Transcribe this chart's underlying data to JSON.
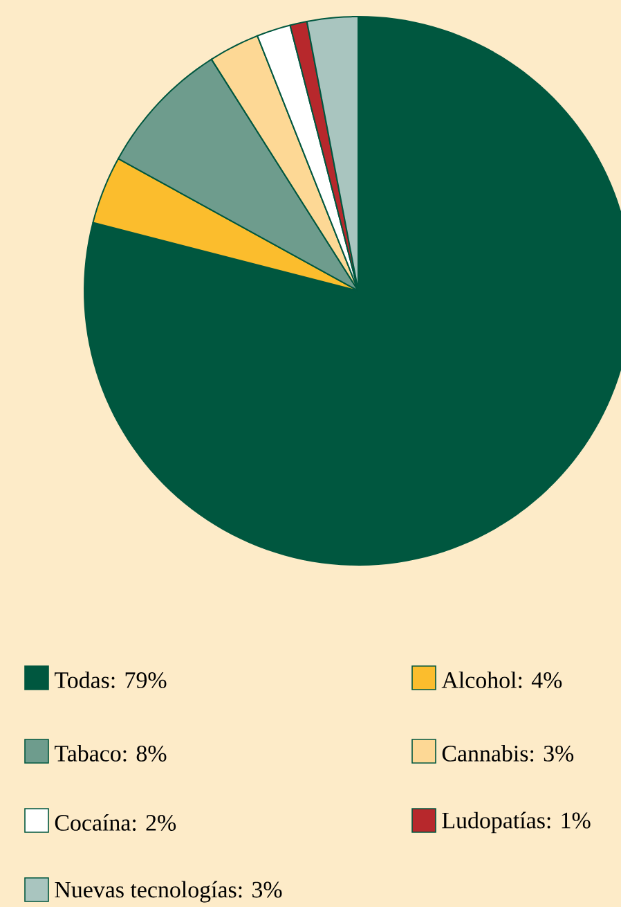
{
  "chart_data": {
    "type": "pie",
    "categories": [
      "Todas: 79%",
      "Alcohol: 4%",
      "Tabaco: 8%",
      "Cannabis: 3%",
      "Cocaína: 2%",
      "Ludopatías: 1%",
      "Nuevas tecnologías: 3%"
    ],
    "values": [
      79,
      4,
      8,
      3,
      2,
      1,
      3
    ],
    "colors": [
      "#00573f",
      "#fbbd2d",
      "#6e9c8d",
      "#fdd895",
      "#ffffff",
      "#b7282c",
      "#a9c5bf"
    ],
    "legend": "bottom"
  }
}
